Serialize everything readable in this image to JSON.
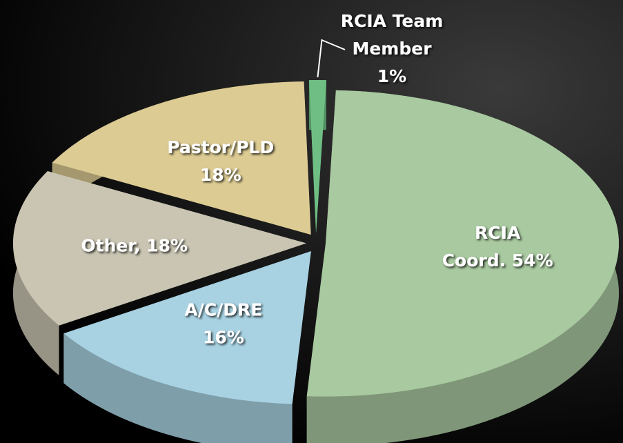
{
  "chart_data": {
    "type": "pie3d",
    "labels": [
      [
        "RCIA",
        "Coord. 54%"
      ],
      [
        "A/C/DRE",
        "16%"
      ],
      [
        "Other, 18%"
      ],
      [
        "Pastor/PLD",
        "18%"
      ],
      [
        "RCIA Team",
        "Member",
        "1%"
      ]
    ],
    "values": [
      54,
      16,
      18,
      18,
      1
    ],
    "colors": [
      "#a9c9a0",
      "#a8d2e2",
      "#c9c5b2",
      "#dccb93",
      "#6fbf84"
    ]
  }
}
